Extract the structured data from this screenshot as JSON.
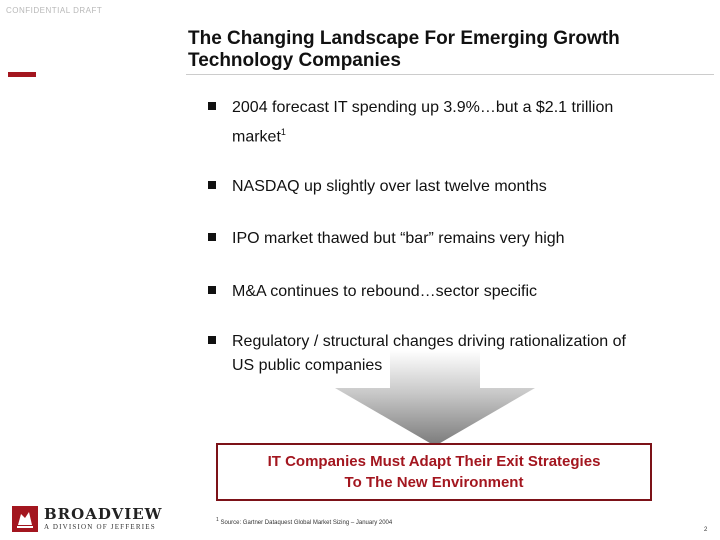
{
  "header": {
    "confidential": "CONFIDENTIAL DRAFT",
    "title_line1": "The Changing Landscape For Emerging Growth",
    "title_line2": "Technology Companies"
  },
  "bullets": [
    {
      "text_line1": "2004 forecast IT spending up 3.9%…but a $2.1 trillion",
      "text_line2": "market",
      "superscript": "1"
    },
    {
      "text": "NASDAQ up slightly over last twelve months"
    },
    {
      "text": "IPO market thawed but “bar” remains very high"
    },
    {
      "text": "M&A continues to rebound…sector specific"
    },
    {
      "text_line1": "Regulatory / structural changes driving rationalization of",
      "text_line2": "US public companies"
    }
  ],
  "callout": {
    "line1": "IT Companies Must Adapt Their Exit Strategies",
    "line2": "To The New Environment"
  },
  "footer": {
    "footnote_mark": "1",
    "footnote": "Source: Gartner Dataquest Global Market Sizing – January 2004",
    "page_number": "2",
    "logo_brand": "BROADVIEW",
    "logo_sub": "A DIVISION OF JEFFERIES"
  },
  "colors": {
    "accent": "#a3161f",
    "callout_border": "#7c1218",
    "arrow": "#8a8a8a"
  }
}
